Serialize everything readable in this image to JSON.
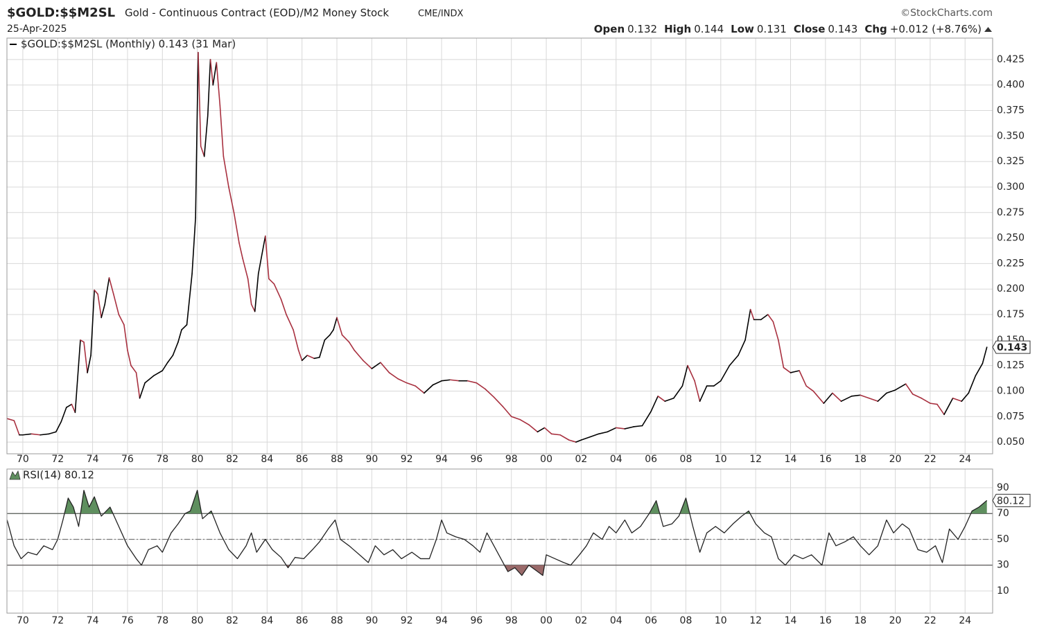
{
  "header": {
    "symbol": "$GOLD:$$M2SL",
    "description": "Gold - Continuous Contract (EOD)/M2 Money Stock",
    "exchange": "CME/INDX",
    "source": "©StockCharts.com",
    "date": "25-Apr-2025",
    "quote": [
      {
        "label": "Open",
        "value": "0.132"
      },
      {
        "label": "High",
        "value": "0.144"
      },
      {
        "label": "Low",
        "value": "0.131"
      },
      {
        "label": "Close",
        "value": "0.143"
      },
      {
        "label": "Chg",
        "value": "+0.012 (+8.76%)"
      }
    ]
  },
  "chart_data": [
    {
      "type": "line",
      "x": [
        1969.1,
        1969.5,
        1969.8,
        1970.0,
        1970.5,
        1971.0,
        1971.5,
        1971.9,
        1972.2,
        1972.5,
        1972.8,
        1973.0,
        1973.3,
        1973.5,
        1973.7,
        1973.9,
        1974.1,
        1974.3,
        1974.5,
        1974.7,
        1974.95,
        1975.2,
        1975.5,
        1975.8,
        1976.0,
        1976.2,
        1976.5,
        1976.7,
        1977.0,
        1977.5,
        1977.8,
        1978.0,
        1978.3,
        1978.6,
        1978.9,
        1979.1,
        1979.4,
        1979.7,
        1979.9,
        1980.05,
        1980.2,
        1980.4,
        1980.6,
        1980.75,
        1980.9,
        1981.1,
        1981.3,
        1981.5,
        1981.8,
        1982.1,
        1982.4,
        1982.6,
        1982.9,
        1983.1,
        1983.3,
        1983.5,
        1983.9,
        1984.1,
        1984.4,
        1984.8,
        1985.1,
        1985.5,
        1985.8,
        1986.0,
        1986.3,
        1986.7,
        1987.0,
        1987.3,
        1987.6,
        1987.8,
        1988.0,
        1988.3,
        1988.7,
        1989.0,
        1989.5,
        1990.0,
        1990.5,
        1991.0,
        1991.5,
        1992.0,
        1992.5,
        1993.0,
        1993.5,
        1994.0,
        1994.5,
        1995.0,
        1995.5,
        1996.0,
        1996.5,
        1997.0,
        1997.5,
        1998.0,
        1998.5,
        1999.0,
        1999.5,
        1999.9,
        2000.3,
        2000.8,
        2001.3,
        2001.7,
        2002.0,
        2002.5,
        2003.0,
        2003.5,
        2004.0,
        2004.5,
        2005.0,
        2005.5,
        2006.0,
        2006.4,
        2006.8,
        2007.3,
        2007.8,
        2008.1,
        2008.5,
        2008.8,
        2009.2,
        2009.6,
        2010.0,
        2010.5,
        2011.0,
        2011.4,
        2011.7,
        2011.9,
        2012.3,
        2012.7,
        2013.0,
        2013.3,
        2013.6,
        2014.0,
        2014.5,
        2014.9,
        2015.3,
        2015.9,
        2016.4,
        2016.9,
        2017.5,
        2018.0,
        2018.5,
        2019.0,
        2019.5,
        2020.0,
        2020.6,
        2021.0,
        2021.5,
        2022.0,
        2022.4,
        2022.8,
        2023.3,
        2023.8,
        2024.2,
        2024.6,
        2025.0,
        2025.25
      ],
      "series": [
        {
          "name": "$GOLD:$$M2SL (Monthly) 0.143 (31 Mar)",
          "color": "#000000",
          "down_color": "#a8303f",
          "values": [
            0.073,
            0.071,
            0.057,
            0.057,
            0.058,
            0.057,
            0.058,
            0.06,
            0.07,
            0.084,
            0.087,
            0.079,
            0.15,
            0.148,
            0.118,
            0.135,
            0.199,
            0.195,
            0.172,
            0.185,
            0.211,
            0.195,
            0.175,
            0.165,
            0.14,
            0.125,
            0.118,
            0.093,
            0.108,
            0.115,
            0.118,
            0.12,
            0.128,
            0.135,
            0.148,
            0.16,
            0.165,
            0.215,
            0.27,
            0.432,
            0.34,
            0.33,
            0.37,
            0.425,
            0.4,
            0.422,
            0.38,
            0.33,
            0.3,
            0.275,
            0.245,
            0.23,
            0.21,
            0.185,
            0.178,
            0.215,
            0.252,
            0.21,
            0.205,
            0.19,
            0.175,
            0.16,
            0.14,
            0.13,
            0.135,
            0.132,
            0.133,
            0.15,
            0.155,
            0.16,
            0.172,
            0.155,
            0.148,
            0.14,
            0.13,
            0.122,
            0.128,
            0.118,
            0.112,
            0.108,
            0.105,
            0.098,
            0.106,
            0.11,
            0.111,
            0.11,
            0.11,
            0.108,
            0.102,
            0.094,
            0.085,
            0.075,
            0.072,
            0.067,
            0.06,
            0.064,
            0.058,
            0.057,
            0.052,
            0.05,
            0.052,
            0.055,
            0.058,
            0.06,
            0.064,
            0.063,
            0.065,
            0.066,
            0.08,
            0.095,
            0.09,
            0.093,
            0.105,
            0.125,
            0.11,
            0.09,
            0.105,
            0.105,
            0.11,
            0.125,
            0.135,
            0.15,
            0.18,
            0.17,
            0.17,
            0.175,
            0.168,
            0.15,
            0.123,
            0.118,
            0.12,
            0.105,
            0.1,
            0.088,
            0.098,
            0.09,
            0.095,
            0.096,
            0.093,
            0.09,
            0.098,
            0.101,
            0.107,
            0.097,
            0.093,
            0.088,
            0.087,
            0.077,
            0.093,
            0.09,
            0.098,
            0.115,
            0.127,
            0.143
          ]
        }
      ],
      "xlim": [
        1969.09,
        2025.58
      ],
      "xticks": [
        {
          "value": 1970,
          "label": "70"
        },
        {
          "value": 1972,
          "label": "72"
        },
        {
          "value": 1974,
          "label": "74"
        },
        {
          "value": 1976,
          "label": "76"
        },
        {
          "value": 1978,
          "label": "78"
        },
        {
          "value": 1980,
          "label": "80"
        },
        {
          "value": 1982,
          "label": "82"
        },
        {
          "value": 1984,
          "label": "84"
        },
        {
          "value": 1986,
          "label": "86"
        },
        {
          "value": 1988,
          "label": "88"
        },
        {
          "value": 1990,
          "label": "90"
        },
        {
          "value": 1992,
          "label": "92"
        },
        {
          "value": 1994,
          "label": "94"
        },
        {
          "value": 1996,
          "label": "96"
        },
        {
          "value": 1998,
          "label": "98"
        },
        {
          "value": 2000,
          "label": "00"
        },
        {
          "value": 2002,
          "label": "02"
        },
        {
          "value": 2004,
          "label": "04"
        },
        {
          "value": 2006,
          "label": "06"
        },
        {
          "value": 2008,
          "label": "08"
        },
        {
          "value": 2010,
          "label": "10"
        },
        {
          "value": 2012,
          "label": "12"
        },
        {
          "value": 2014,
          "label": "14"
        },
        {
          "value": 2016,
          "label": "16"
        },
        {
          "value": 2018,
          "label": "18"
        },
        {
          "value": 2020,
          "label": "20"
        },
        {
          "value": 2022,
          "label": "22"
        },
        {
          "value": 2024,
          "label": "24"
        }
      ],
      "ylim": [
        0.0385,
        0.446
      ],
      "yticks": [
        {
          "value": 0.05,
          "label": "0.050"
        },
        {
          "value": 0.075,
          "label": "0.075"
        },
        {
          "value": 0.1,
          "label": "0.100"
        },
        {
          "value": 0.125,
          "label": "0.125"
        },
        {
          "value": 0.15,
          "label": "0.150"
        },
        {
          "value": 0.175,
          "label": "0.175"
        },
        {
          "value": 0.2,
          "label": "0.200"
        },
        {
          "value": 0.225,
          "label": "0.225"
        },
        {
          "value": 0.25,
          "label": "0.250"
        },
        {
          "value": 0.275,
          "label": "0.275"
        },
        {
          "value": 0.3,
          "label": "0.300"
        },
        {
          "value": 0.325,
          "label": "0.325"
        },
        {
          "value": 0.35,
          "label": "0.350"
        },
        {
          "value": 0.375,
          "label": "0.375"
        },
        {
          "value": 0.4,
          "label": "0.400"
        },
        {
          "value": 0.425,
          "label": "0.425"
        }
      ],
      "grid": true,
      "last_value": 0.143
    },
    {
      "type": "line",
      "x": [
        1969.1,
        1969.5,
        1969.9,
        1970.3,
        1970.8,
        1971.2,
        1971.7,
        1972.0,
        1972.3,
        1972.6,
        1972.9,
        1973.2,
        1973.5,
        1973.8,
        1974.1,
        1974.5,
        1975.0,
        1975.5,
        1976.0,
        1976.5,
        1976.8,
        1977.2,
        1977.7,
        1978.0,
        1978.5,
        1978.9,
        1979.3,
        1979.6,
        1980.0,
        1980.3,
        1980.8,
        1981.3,
        1981.8,
        1982.3,
        1982.8,
        1983.1,
        1983.4,
        1983.9,
        1984.3,
        1984.8,
        1985.2,
        1985.6,
        1986.1,
        1986.6,
        1987.0,
        1987.5,
        1987.9,
        1988.2,
        1988.7,
        1989.3,
        1989.8,
        1990.2,
        1990.7,
        1991.2,
        1991.7,
        1992.3,
        1992.8,
        1993.3,
        1993.7,
        1994.0,
        1994.3,
        1994.8,
        1995.3,
        1995.8,
        1996.2,
        1996.6,
        1997.0,
        1997.4,
        1997.8,
        1998.2,
        1998.6,
        1999.0,
        1999.5,
        1999.8,
        2000.0,
        2000.5,
        2001.0,
        2001.4,
        2001.9,
        2002.3,
        2002.7,
        2003.2,
        2003.6,
        2004.0,
        2004.5,
        2004.9,
        2005.4,
        2005.9,
        2006.3,
        2006.7,
        2007.2,
        2007.6,
        2008.0,
        2008.4,
        2008.8,
        2009.2,
        2009.7,
        2010.2,
        2010.7,
        2011.2,
        2011.6,
        2012.0,
        2012.5,
        2012.9,
        2013.3,
        2013.7,
        2014.2,
        2014.7,
        2015.2,
        2015.8,
        2016.2,
        2016.6,
        2017.1,
        2017.6,
        2018.0,
        2018.5,
        2019.0,
        2019.5,
        2019.9,
        2020.4,
        2020.8,
        2021.3,
        2021.8,
        2022.3,
        2022.7,
        2023.1,
        2023.6,
        2024.0,
        2024.4,
        2024.8,
        2025.25
      ],
      "series": [
        {
          "name": "RSI(14) 80.12",
          "color": "#222222",
          "values": [
            65,
            45,
            35,
            40,
            38,
            45,
            42,
            50,
            65,
            82,
            75,
            60,
            88,
            75,
            83,
            68,
            75,
            60,
            45,
            35,
            30,
            42,
            45,
            40,
            55,
            62,
            70,
            72,
            88,
            66,
            72,
            55,
            42,
            35,
            45,
            55,
            40,
            50,
            42,
            36,
            28,
            36,
            35,
            42,
            48,
            58,
            65,
            50,
            45,
            38,
            32,
            45,
            38,
            42,
            35,
            40,
            35,
            35,
            50,
            65,
            55,
            52,
            50,
            45,
            40,
            55,
            45,
            35,
            25,
            28,
            22,
            30,
            25,
            22,
            38,
            35,
            32,
            30,
            38,
            45,
            55,
            50,
            60,
            55,
            65,
            55,
            60,
            70,
            80,
            60,
            62,
            68,
            82,
            60,
            40,
            55,
            60,
            55,
            62,
            68,
            72,
            62,
            55,
            52,
            35,
            30,
            38,
            35,
            38,
            30,
            55,
            45,
            48,
            52,
            45,
            38,
            45,
            65,
            55,
            62,
            58,
            42,
            40,
            45,
            32,
            58,
            50,
            60,
            72,
            75,
            80.12
          ]
        }
      ],
      "xlim": [
        1969.09,
        2025.58
      ],
      "xticks": [
        {
          "value": 1970,
          "label": "70"
        },
        {
          "value": 1972,
          "label": "72"
        },
        {
          "value": 1974,
          "label": "74"
        },
        {
          "value": 1976,
          "label": "76"
        },
        {
          "value": 1978,
          "label": "78"
        },
        {
          "value": 1980,
          "label": "80"
        },
        {
          "value": 1982,
          "label": "82"
        },
        {
          "value": 1984,
          "label": "84"
        },
        {
          "value": 1986,
          "label": "86"
        },
        {
          "value": 1988,
          "label": "88"
        },
        {
          "value": 1990,
          "label": "90"
        },
        {
          "value": 1992,
          "label": "92"
        },
        {
          "value": 1994,
          "label": "94"
        },
        {
          "value": 1996,
          "label": "96"
        },
        {
          "value": 1998,
          "label": "98"
        },
        {
          "value": 2000,
          "label": "00"
        },
        {
          "value": 2002,
          "label": "02"
        },
        {
          "value": 2004,
          "label": "04"
        },
        {
          "value": 2006,
          "label": "06"
        },
        {
          "value": 2008,
          "label": "08"
        },
        {
          "value": 2010,
          "label": "10"
        },
        {
          "value": 2012,
          "label": "12"
        },
        {
          "value": 2014,
          "label": "14"
        },
        {
          "value": 2016,
          "label": "16"
        },
        {
          "value": 2018,
          "label": "18"
        },
        {
          "value": 2020,
          "label": "20"
        },
        {
          "value": 2022,
          "label": "22"
        },
        {
          "value": 2024,
          "label": "24"
        }
      ],
      "ylim": [
        -7.2,
        104.5
      ],
      "yticks": [
        10,
        30,
        50,
        70,
        90
      ],
      "grid": true,
      "overbought": 70,
      "oversold": 30,
      "midline": 50,
      "overbought_color": "#5f8f5f",
      "oversold_color": "#9a6a6a",
      "last_value": 80.12
    }
  ]
}
